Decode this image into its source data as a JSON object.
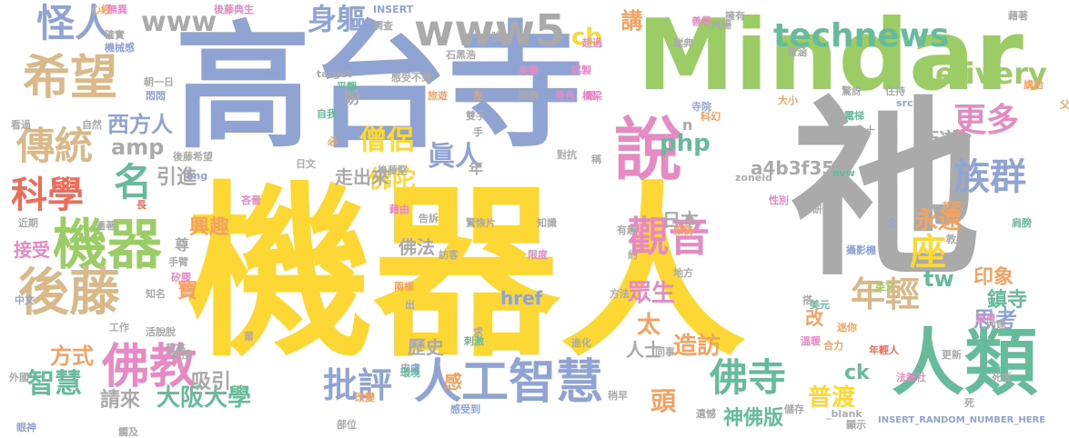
{
  "palette": {
    "yellow": "#fdd835",
    "blue": "#90a4d4",
    "grey": "#aaaaaa",
    "green": "#9ccc65",
    "teal": "#66bb9a",
    "orange": "#f4a261",
    "red": "#ef6c5a",
    "pink": "#e78ac3",
    "tan": "#d9b98a"
  },
  "words": [
    {
      "text": "機器人",
      "color": "yellow"
    },
    {
      "text": "高台寺",
      "color": "blue"
    },
    {
      "text": "Mindar",
      "color": "green"
    },
    {
      "text": "祂",
      "color": "grey"
    },
    {
      "text": "人類",
      "color": "teal"
    },
    {
      "text": "說",
      "color": "pink"
    },
    {
      "text": "www5",
      "color": "grey"
    },
    {
      "text": "人工智慧",
      "color": "blue"
    },
    {
      "text": "機器",
      "color": "green"
    },
    {
      "text": "希望",
      "color": "tan"
    },
    {
      "text": "怪人",
      "color": "blue"
    },
    {
      "text": "www",
      "color": "grey"
    },
    {
      "text": "technews",
      "color": "teal"
    },
    {
      "text": "delivery",
      "color": "green"
    },
    {
      "text": "後藤",
      "color": "tan"
    },
    {
      "text": "佛教",
      "color": "pink"
    },
    {
      "text": "科學",
      "color": "red"
    },
    {
      "text": "傳統",
      "color": "tan"
    },
    {
      "text": "名",
      "color": "teal"
    },
    {
      "text": "觀音",
      "color": "pink"
    },
    {
      "text": "族群",
      "color": "blue"
    },
    {
      "text": "更多",
      "color": "pink"
    },
    {
      "text": "年輕",
      "color": "tan"
    },
    {
      "text": "座",
      "color": "yellow"
    },
    {
      "text": "佛寺",
      "color": "teal"
    },
    {
      "text": "批評",
      "color": "blue"
    },
    {
      "text": "身軀",
      "color": "blue"
    },
    {
      "text": "cb",
      "color": "yellow"
    },
    {
      "text": "講",
      "color": "orange"
    },
    {
      "text": "php",
      "color": "teal"
    },
    {
      "text": "僧侶",
      "color": "yellow"
    },
    {
      "text": "眞人",
      "color": "blue"
    },
    {
      "text": "西方人",
      "color": "blue"
    },
    {
      "text": "amp",
      "color": "grey"
    },
    {
      "text": "智慧",
      "color": "teal"
    },
    {
      "text": "大阪大學",
      "color": "teal"
    },
    {
      "text": "方式",
      "color": "orange"
    },
    {
      "text": "引進",
      "color": "grey"
    },
    {
      "text": "興趣",
      "color": "orange"
    },
    {
      "text": "佛陀",
      "color": "yellow"
    },
    {
      "text": "永遠",
      "color": "orange"
    },
    {
      "text": "衛道",
      "color": "grey"
    },
    {
      "text": "a4b3f35b",
      "color": "grey"
    },
    {
      "text": "tw",
      "color": "teal"
    },
    {
      "text": "思考",
      "color": "blue"
    },
    {
      "text": "印象",
      "color": "orange"
    },
    {
      "text": "鎮寺",
      "color": "teal"
    },
    {
      "text": "眾生",
      "color": "pink"
    },
    {
      "text": "普渡",
      "color": "yellow"
    },
    {
      "text": "造訪",
      "color": "orange"
    },
    {
      "text": "神佛版",
      "color": "teal"
    },
    {
      "text": "ck",
      "color": "teal"
    },
    {
      "text": "頭",
      "color": "orange"
    },
    {
      "text": "太",
      "color": "orange"
    },
    {
      "text": "吸引",
      "color": "grey"
    },
    {
      "text": "請來",
      "color": "grey"
    },
    {
      "text": "接受",
      "color": "pink"
    },
    {
      "text": "佛法",
      "color": "grey"
    },
    {
      "text": "日本",
      "color": "grey"
    },
    {
      "text": "歷史",
      "color": "grey"
    },
    {
      "text": "人士",
      "color": "grey"
    },
    {
      "text": "寶",
      "color": "orange"
    },
    {
      "text": "改",
      "color": "orange"
    },
    {
      "text": "感",
      "color": "orange"
    },
    {
      "text": "href",
      "color": "blue"
    },
    {
      "text": "年",
      "color": "grey"
    },
    {
      "text": "n",
      "color": "grey"
    },
    {
      "text": "盼",
      "color": "grey"
    },
    {
      "text": "尊",
      "color": "grey"
    },
    {
      "text": "INSERT_RANDOM_NUMBER_HERE",
      "color": "blue"
    },
    {
      "text": "後藤典生",
      "color": "pink"
    },
    {
      "text": "心經",
      "color": "orange"
    },
    {
      "text": "無異",
      "color": "pink"
    },
    {
      "text": "確實",
      "color": "grey"
    },
    {
      "text": "機械感",
      "color": "blue"
    },
    {
      "text": "感受不到",
      "color": "grey"
    },
    {
      "text": "旅遊",
      "color": "orange"
    },
    {
      "text": "左",
      "color": "orange"
    },
    {
      "text": "角色",
      "color": "pink"
    },
    {
      "text": "關聯",
      "color": "grey"
    },
    {
      "text": "橋梁",
      "color": "pink"
    },
    {
      "text": "寺院",
      "color": "blue"
    },
    {
      "text": "科幻",
      "color": "orange"
    },
    {
      "text": "電梯",
      "color": "teal"
    },
    {
      "text": "合十",
      "color": "grey"
    },
    {
      "text": "住持",
      "color": "grey"
    },
    {
      "text": "src",
      "color": "blue"
    },
    {
      "text": "講給",
      "color": "orange"
    },
    {
      "text": "父",
      "color": "orange"
    },
    {
      "text": "target",
      "color": "grey"
    },
    {
      "text": "自我",
      "color": "teal"
    },
    {
      "text": "雙手",
      "color": "grey"
    },
    {
      "text": "手",
      "color": "grey"
    },
    {
      "text": "後藤堅",
      "color": "grey"
    },
    {
      "text": "知識",
      "color": "grey"
    },
    {
      "text": "驚恢片",
      "color": "grey"
    },
    {
      "text": "有趣",
      "color": "grey"
    },
    {
      "text": "服務",
      "color": "orange"
    },
    {
      "text": "告訴",
      "color": "grey"
    },
    {
      "text": "日文",
      "color": "grey"
    },
    {
      "text": "zoneid",
      "color": "grey"
    },
    {
      "text": "avw",
      "color": "teal"
    },
    {
      "text": "img",
      "color": "blue"
    },
    {
      "text": "性別",
      "color": "pink"
    },
    {
      "text": "花招",
      "color": "orange"
    },
    {
      "text": "肩膀",
      "color": "teal"
    },
    {
      "text": "英文",
      "color": "green"
    },
    {
      "text": "攝影機",
      "color": "blue"
    },
    {
      "text": "美元",
      "color": "teal"
    },
    {
      "text": "婚禮",
      "color": "pink"
    },
    {
      "text": "內建",
      "color": "grey"
    },
    {
      "text": "溫暖",
      "color": "pink"
    },
    {
      "text": "迷你",
      "color": "orange"
    },
    {
      "text": "同事",
      "color": "grey"
    },
    {
      "text": "方法",
      "color": "grey"
    },
    {
      "text": "進化",
      "color": "grey"
    },
    {
      "text": "刺激",
      "color": "teal"
    },
    {
      "text": "皮膚",
      "color": "blue"
    },
    {
      "text": "感受到",
      "color": "blue"
    },
    {
      "text": "環境",
      "color": "teal"
    },
    {
      "text": "眼神",
      "color": "blue"
    },
    {
      "text": "觸及",
      "color": "grey"
    },
    {
      "text": "部位",
      "color": "grey"
    },
    {
      "text": "改變",
      "color": "orange"
    },
    {
      "text": "遺憾",
      "color": "grey"
    },
    {
      "text": "顯示",
      "color": "grey"
    },
    {
      "text": "死",
      "color": "grey"
    },
    {
      "text": "死板",
      "color": "grey"
    },
    {
      "text": "法新社",
      "color": "pink"
    },
    {
      "text": "年輕人",
      "color": "red"
    },
    {
      "text": "更新",
      "color": "grey"
    },
    {
      "text": "合力",
      "color": "orange"
    },
    {
      "text": "儲存",
      "color": "grey"
    },
    {
      "text": "_blank",
      "color": "grey"
    },
    {
      "text": "外國",
      "color": "grey"
    },
    {
      "text": "教授",
      "color": "grey"
    },
    {
      "text": "工作",
      "color": "grey"
    },
    {
      "text": "中文",
      "color": "blue"
    },
    {
      "text": "知名",
      "color": "grey"
    },
    {
      "text": "活脫脫",
      "color": "grey"
    },
    {
      "text": "發亮",
      "color": "grey"
    },
    {
      "text": "手臂",
      "color": "grey"
    },
    {
      "text": "矽膠",
      "color": "pink"
    },
    {
      "text": "看過",
      "color": "grey"
    },
    {
      "text": "自然",
      "color": "grey"
    },
    {
      "text": "後藤希望",
      "color": "grey"
    },
    {
      "text": "近期",
      "color": "grey"
    },
    {
      "text": "透著",
      "color": "grey"
    },
    {
      "text": "朝一日",
      "color": "grey"
    },
    {
      "text": "悶悶",
      "color": "blue"
    },
    {
      "text": "石黑浩",
      "color": "grey"
    },
    {
      "text": "陰森",
      "color": "blue"
    },
    {
      "text": "美樂",
      "color": "pink"
    },
    {
      "text": "鋁製",
      "color": "pink"
    },
    {
      "text": "眼",
      "color": "pink"
    },
    {
      "text": "意涵",
      "color": "grey"
    },
    {
      "text": "驚訝",
      "color": "grey"
    },
    {
      "text": "藉著",
      "color": "grey"
    },
    {
      "text": "善尋",
      "color": "pink"
    },
    {
      "text": "擁有",
      "color": "grey"
    },
    {
      "text": "爽暢",
      "color": "grey"
    },
    {
      "text": "瑞典",
      "color": "grey"
    },
    {
      "text": "超過",
      "color": "pink"
    },
    {
      "text": "INSERT",
      "color": "blue"
    },
    {
      "text": "調查",
      "color": "grey"
    },
    {
      "text": "長",
      "color": "red"
    },
    {
      "text": "平靜",
      "color": "teal"
    },
    {
      "text": "臉",
      "color": "grey"
    },
    {
      "text": "藉由",
      "color": "pink"
    },
    {
      "text": "訪客",
      "color": "grey"
    },
    {
      "text": "限度",
      "color": "pink"
    },
    {
      "text": "約",
      "color": "grey"
    },
    {
      "text": "地方",
      "color": "grey"
    },
    {
      "text": "沒 研發",
      "color": "grey"
    },
    {
      "text": "企",
      "color": "blue"
    },
    {
      "text": "出",
      "color": "grey"
    },
    {
      "text": "求",
      "color": "grey"
    },
    {
      "text": "兩樣",
      "color": "orange"
    },
    {
      "text": "吝嗇",
      "color": "pink"
    },
    {
      "text": "稱",
      "color": "grey"
    },
    {
      "text": "對抗",
      "color": "grey"
    },
    {
      "text": "大小",
      "color": "orange"
    },
    {
      "text": "搭",
      "color": "grey"
    },
    {
      "text": "教",
      "color": "grey"
    },
    {
      "text": "必",
      "color": "orange"
    },
    {
      "text": "莆",
      "color": "grey"
    },
    {
      "text": "走出來",
      "color": "grey"
    },
    {
      "text": "稍早",
      "color": "grey"
    },
    {
      "text": "a",
      "color": "grey"
    },
    {
      "text": "受",
      "color": "grey"
    }
  ]
}
